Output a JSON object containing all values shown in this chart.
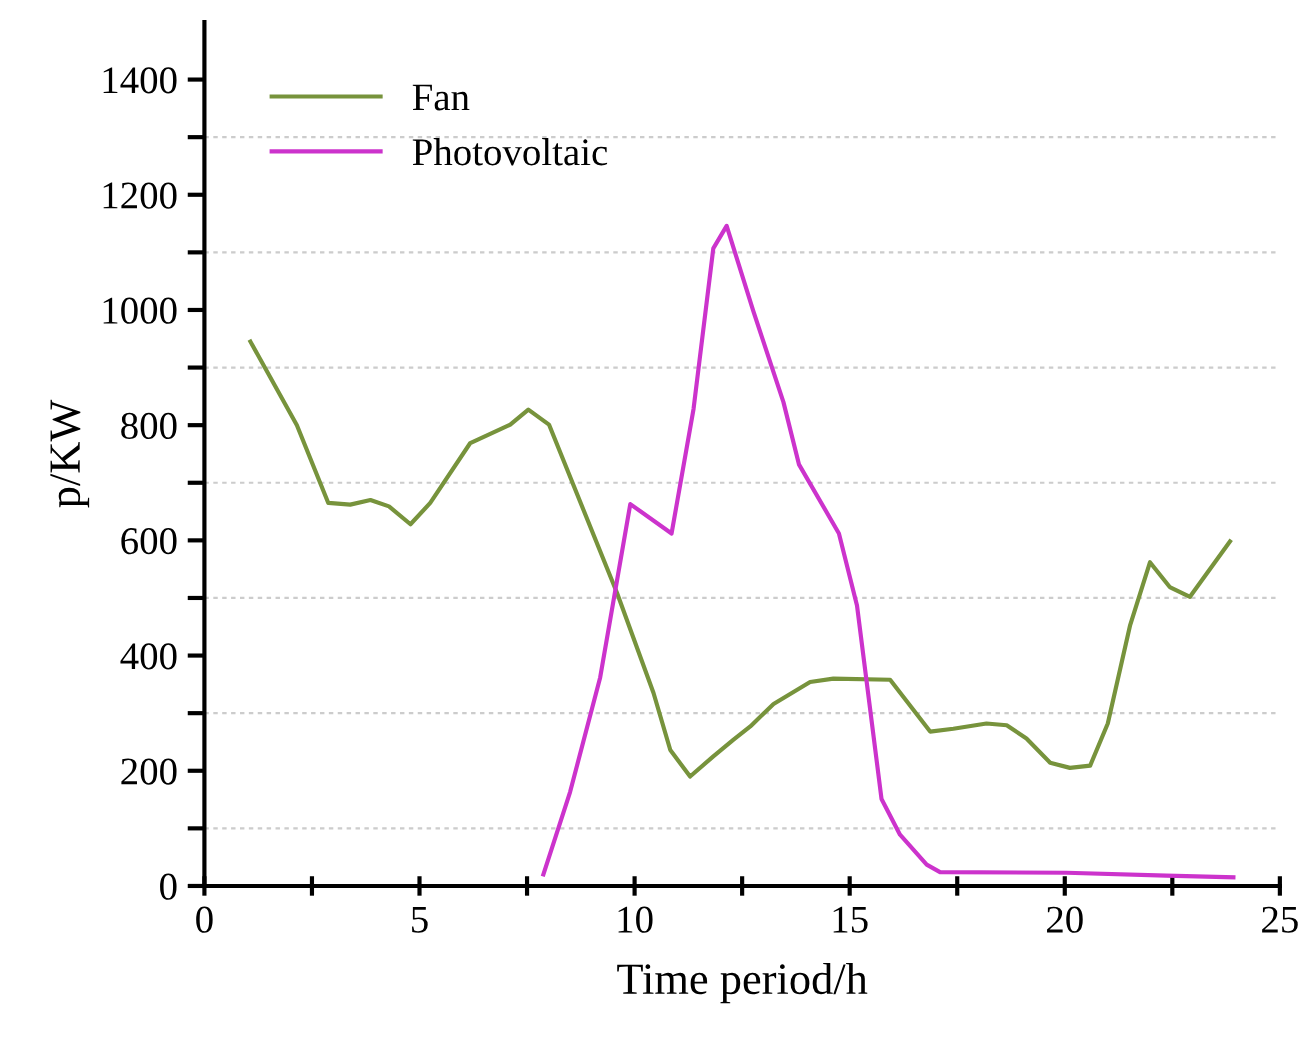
{
  "chart_data": {
    "type": "line",
    "xlabel": "Time period/h",
    "ylabel": "p/KW",
    "xlim": [
      0,
      25
    ],
    "xticks": [
      0,
      {
        "value": 2.5,
        "label": null
      },
      5,
      {
        "value": 7.5,
        "label": null
      },
      10,
      {
        "value": 12.5,
        "label": null
      },
      15,
      {
        "value": 17.5,
        "label": null
      },
      20,
      {
        "value": 22.5,
        "label": null
      },
      25
    ],
    "ylim": [
      0,
      1500
    ],
    "yticks": [
      0,
      {
        "value": 100,
        "label": null
      },
      200,
      {
        "value": 300,
        "label": null
      },
      400,
      {
        "value": 500,
        "label": null
      },
      600,
      {
        "value": 700,
        "label": null
      },
      800,
      {
        "value": 900,
        "label": null
      },
      1000,
      {
        "value": 1100,
        "label": null
      },
      1200,
      {
        "value": 1300,
        "label": null
      },
      1400
    ],
    "grid": "y",
    "legend": "top left",
    "marker": "none",
    "line_style": "solid",
    "series": [
      {
        "name": "Fan",
        "color": "#77933c",
        "x": [
          1.07,
          2.15,
          2.88,
          3.39,
          3.86,
          4.29,
          4.79,
          5.25,
          6.18,
          7.11,
          7.53,
          8.01,
          9.59,
          10.44,
          10.83,
          11.29,
          11.83,
          12.3,
          12.69,
          13.23,
          14.08,
          14.62,
          15.94,
          16.87,
          17.41,
          18.18,
          18.65,
          19.11,
          19.66,
          20.12,
          20.59,
          21.0,
          21.52,
          21.98,
          22.44,
          22.91,
          23.84
        ],
        "values": [
          945,
          800,
          665,
          662,
          670,
          659,
          628,
          665,
          769,
          801,
          827,
          801,
          509,
          335,
          236,
          190,
          225,
          254,
          277,
          316,
          354,
          360,
          358,
          268,
          273,
          282,
          279,
          256,
          214,
          205,
          209,
          282,
          453,
          562,
          519,
          502,
          598
        ]
      },
      {
        "name": "Photovoltaic",
        "color": "#cc33cc",
        "x": [
          7.88,
          8.5,
          9.2,
          9.9,
          10.86,
          11.37,
          11.83,
          12.14,
          12.76,
          13.46,
          13.82,
          14.75,
          15.17,
          15.74,
          16.17,
          16.79,
          17.1,
          20.04,
          22.36,
          23.92
        ],
        "values": [
          20,
          163,
          362,
          663,
          612,
          828,
          1107,
          1146,
          998,
          840,
          732,
          612,
          487,
          151,
          89,
          37,
          24,
          23,
          18,
          15
        ]
      }
    ]
  }
}
